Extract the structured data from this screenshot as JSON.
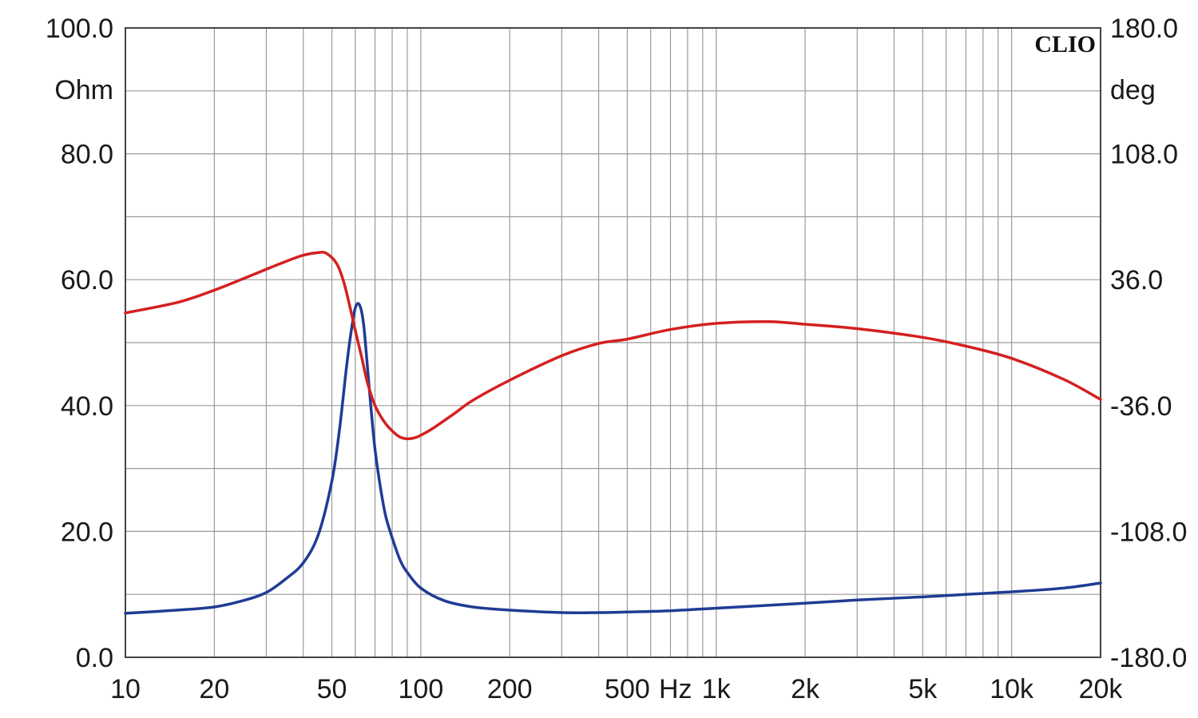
{
  "chart_data": {
    "type": "line",
    "brand": "CLIO",
    "x_scale": "log",
    "xlim": [
      10,
      20000
    ],
    "x_ticks": [
      {
        "value": 10,
        "label": "10"
      },
      {
        "value": 20,
        "label": "20"
      },
      {
        "value": 50,
        "label": "50"
      },
      {
        "value": 100,
        "label": "100"
      },
      {
        "value": 200,
        "label": "200"
      },
      {
        "value": 500,
        "label": "500"
      },
      {
        "value": 1000,
        "label": "1k"
      },
      {
        "value": 2000,
        "label": "2k"
      },
      {
        "value": 5000,
        "label": "5k"
      },
      {
        "value": 10000,
        "label": "10k"
      },
      {
        "value": 20000,
        "label": "20k"
      }
    ],
    "x_unit_label": "Hz",
    "y_left": {
      "unit": "Ohm",
      "lim": [
        0,
        100
      ],
      "ticks": [
        "0.0",
        "20.0",
        "40.0",
        "60.0",
        "80.0",
        "100.0"
      ]
    },
    "y_right": {
      "unit": "deg",
      "lim": [
        -180,
        180
      ],
      "ticks": [
        "-180.0",
        "-108.0",
        "-36.0",
        "36.0",
        "108.0",
        "180.0"
      ]
    },
    "grid": true,
    "series": [
      {
        "axis": "left",
        "color": "#1f3c94",
        "x": [
          10,
          15,
          20,
          25,
          30,
          35,
          40,
          45,
          50,
          53,
          56,
          58,
          60,
          62,
          64,
          66,
          68,
          70,
          73,
          76,
          80,
          85,
          90,
          100,
          120,
          150,
          200,
          300,
          400,
          500,
          700,
          1000,
          2000,
          3000,
          5000,
          7000,
          10000,
          15000,
          20000
        ],
        "y": [
          7,
          7.5,
          8,
          9,
          10.3,
          12.5,
          15,
          19.5,
          28,
          36,
          46,
          51.5,
          55.5,
          56,
          53,
          46,
          39,
          33,
          27,
          22.5,
          19,
          15.5,
          13.5,
          11,
          9,
          8,
          7.5,
          7.1,
          7.1,
          7.2,
          7.4,
          7.8,
          8.6,
          9.1,
          9.6,
          10,
          10.4,
          11,
          11.8
        ]
      },
      {
        "axis": "right",
        "color": "#d42020",
        "x": [
          10,
          15,
          20,
          25,
          30,
          35,
          40,
          45,
          48,
          52,
          55,
          58,
          60,
          63,
          66,
          70,
          75,
          80,
          85,
          90,
          95,
          100,
          110,
          130,
          150,
          200,
          300,
          400,
          500,
          700,
          1000,
          1500,
          2000,
          3000,
          5000,
          7000,
          10000,
          15000,
          20000
        ],
        "y": [
          17,
          23,
          30,
          36.5,
          42,
          46.5,
          50,
          51.5,
          51,
          45,
          34,
          18,
          7,
          -8,
          -23,
          -36,
          -45,
          -50.5,
          -54,
          -55,
          -54.5,
          -53,
          -49,
          -40.5,
          -33,
          -21.5,
          -7.5,
          -0.5,
          2,
          7.5,
          11,
          12,
          10.5,
          8,
          3,
          -2,
          -9,
          -21,
          -32.5
        ]
      }
    ]
  }
}
